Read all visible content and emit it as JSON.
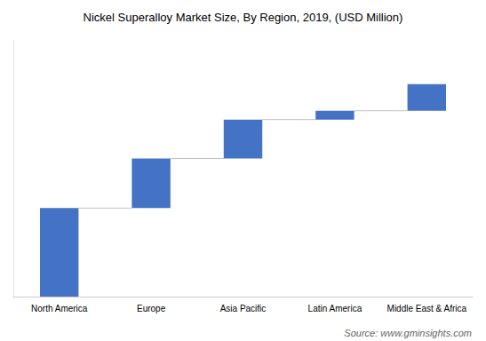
{
  "chart_data": {
    "type": "waterfall",
    "title": "Nickel Superalloy Market Size, By Region, 2019, (USD Million)",
    "categories": [
      "North America",
      "Europe",
      "Asia Pacific",
      "Latin America",
      "Middle East & Africa"
    ],
    "values": [
      5.0,
      2.8,
      2.2,
      0.5,
      1.5
    ],
    "color": "#4472C4",
    "ylim": [
      0,
      14.5
    ],
    "grid": false,
    "tick_labels": "x",
    "annotation": "Source: www.gminsights.com"
  }
}
